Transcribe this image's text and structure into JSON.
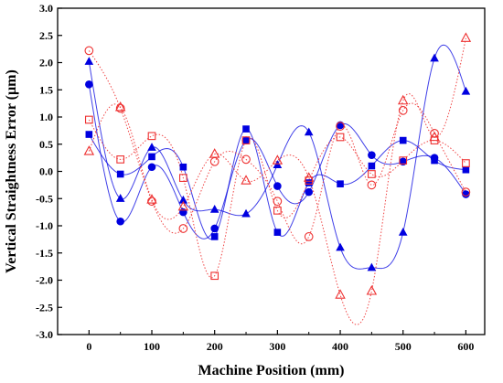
{
  "chart_data": {
    "type": "scatter",
    "title": "",
    "xlabel": "Machine Position (mm)",
    "ylabel": "Vertical Straightness Error (µm)",
    "xlim": [
      -50,
      630
    ],
    "ylim": [
      -3.0,
      3.0
    ],
    "xticks": [
      0,
      100,
      200,
      300,
      400,
      500,
      600
    ],
    "yticks": [
      -3.0,
      -2.5,
      -2.0,
      -1.5,
      -1.0,
      -0.5,
      0.0,
      0.5,
      1.0,
      1.5,
      2.0,
      2.5,
      3.0
    ],
    "grid": false,
    "legend": "none",
    "x": [
      0,
      50,
      100,
      150,
      200,
      250,
      300,
      350,
      400,
      450,
      500,
      550,
      600
    ],
    "series": [
      {
        "marker": "filled-circle",
        "color": "#0000e0",
        "line": "solid",
        "values": [
          1.6,
          -0.92,
          0.08,
          -0.75,
          -1.05,
          0.57,
          -0.27,
          -0.38,
          0.85,
          0.3,
          0.18,
          0.25,
          -0.42
        ]
      },
      {
        "marker": "filled-square",
        "color": "#0000e0",
        "line": "solid",
        "values": [
          0.68,
          -0.05,
          0.27,
          0.08,
          -1.2,
          0.78,
          -1.12,
          -0.21,
          -0.23,
          0.1,
          0.57,
          0.2,
          0.03
        ]
      },
      {
        "marker": "filled-triangle",
        "color": "#0000e0",
        "line": "solid",
        "values": [
          2.02,
          -0.5,
          0.44,
          -0.53,
          -0.7,
          -0.78,
          0.12,
          0.72,
          -1.4,
          -1.77,
          -1.12,
          2.08,
          1.47
        ]
      },
      {
        "marker": "open-circle",
        "color": "#ee3030",
        "line": "dotted",
        "values": [
          2.22,
          1.16,
          -0.55,
          -1.05,
          0.18,
          0.22,
          -0.55,
          -1.2,
          0.83,
          -0.25,
          1.12,
          0.7,
          -0.38
        ]
      },
      {
        "marker": "open-square",
        "color": "#ee3030",
        "line": "dotted",
        "values": [
          0.95,
          0.22,
          0.65,
          -0.12,
          -1.92,
          0.57,
          -0.72,
          -0.17,
          0.63,
          -0.05,
          0.2,
          0.57,
          0.15
        ]
      },
      {
        "marker": "open-triangle",
        "color": "#ee3030",
        "line": "dotted",
        "values": [
          0.37,
          1.18,
          -0.52,
          -0.65,
          0.32,
          -0.17,
          0.2,
          -0.12,
          -2.27,
          -2.2,
          1.3,
          0.63,
          2.45
        ]
      }
    ]
  }
}
